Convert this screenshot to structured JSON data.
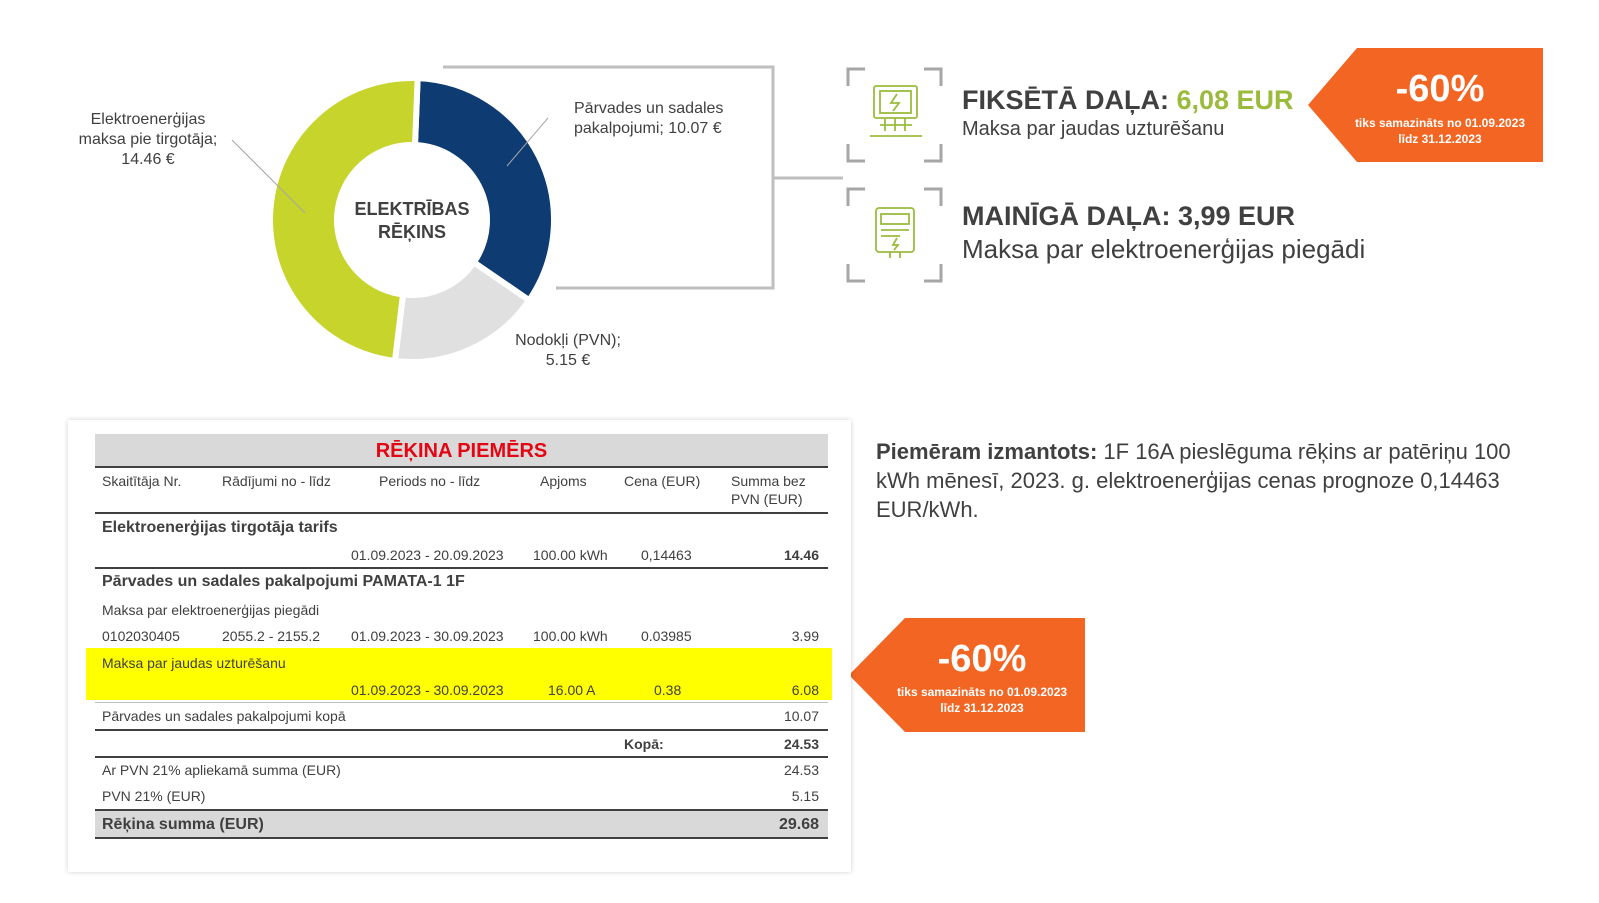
{
  "donut": {
    "center_label_line1": "ELEKTRĪBAS",
    "center_label_line2": "RĒĶINS",
    "segments": [
      {
        "name": "Pārvades un sadales pakalpojumi",
        "value": 10.07,
        "color": "#0d3b72"
      },
      {
        "name": "Nodokļi (PVN)",
        "value": 5.15,
        "color": "#e0e0e0"
      },
      {
        "name": "Elektroenerģijas maksa pie tirgotāja",
        "value": 14.46,
        "color": "#c7d42b"
      }
    ],
    "label_transmission_l1": "Pārvades un sadales",
    "label_transmission_l2": "pakalpojumi; 10.07 €",
    "label_tax_l1": "Nodokļi (PVN);",
    "label_tax_l2": "5.15 €",
    "label_energy_l1": "Elektroenerģijas",
    "label_energy_l2": "maksa pie tirgotāja;",
    "label_energy_l3": "14.46 €"
  },
  "fixed_part": {
    "title": "FIKSĒTĀ DAĻA: ",
    "amount": "6,08 EUR",
    "subtitle": "Maksa par jaudas uzturēšanu",
    "icon": "power-grid-icon"
  },
  "variable_part": {
    "title": "MAINĪGĀ DAĻA: 3,99 EUR",
    "subtitle": "Maksa par elektroenerģijas piegādi",
    "icon": "electricity-meter-icon"
  },
  "badge_top": {
    "percent": "-60%",
    "line1": "tiks samazināts no 01.09.2023",
    "line2": "līdz 31.12.2023",
    "color": "#f26522"
  },
  "badge_mid": {
    "percent": "-60%",
    "line1": "tiks samazināts no 01.09.2023",
    "line2": "līdz 31.12.2023",
    "color": "#f26522"
  },
  "invoice": {
    "title": "RĒĶINA PIEMĒRS",
    "headers": {
      "meter": "Skaitītāja Nr.",
      "readings": "Rādījumi no - līdz",
      "period": "Periods no - līdz",
      "volume": "Apjoms",
      "price": "Cena (EUR)",
      "sum_l1": "Summa bez",
      "sum_l2": "PVN (EUR)"
    },
    "section1": {
      "title": "Elektroenerģijas tirgotāja tarifs",
      "period": "01.09.2023 - 20.09.2023",
      "volume": "100.00 kWh",
      "price": "0,14463",
      "sum": "14.46"
    },
    "section2": {
      "title": "Pārvades un sadales pakalpojumi PAMATA-1 1F",
      "supply_label": "Maksa par elektroenerģijas piegādi",
      "supply_meter": "0102030405",
      "supply_readings": "2055.2 - 2155.2",
      "supply_period": "01.09.2023 - 30.09.2023",
      "supply_volume": "100.00 kWh",
      "supply_price": "0.03985",
      "supply_sum": "3.99",
      "capacity_label": "Maksa par jaudas uzturēšanu",
      "capacity_period": "01.09.2023 - 30.09.2023",
      "capacity_volume": "16.00 A",
      "capacity_price": "0.38",
      "capacity_sum": "6.08",
      "subtotal_label": "Pārvades un sadales pakalpojumi kopā",
      "subtotal": "10.07"
    },
    "total_label": "Kopā:",
    "total": "24.53",
    "vat_base_label": "Ar PVN 21% apliekamā summa (EUR)",
    "vat_base": "24.53",
    "vat_label": "PVN 21% (EUR)",
    "vat": "5.15",
    "grand_label": "Rēķina summa (EUR)",
    "grand": "29.68"
  },
  "note": {
    "bold": "Piemēram izmantots:",
    "text": " 1F 16A pieslēguma rēķins ar patēriņu 100 kWh mēnesī, 2023. g. elektroenerģijas cenas prognoze 0,14463 EUR/kWh."
  }
}
